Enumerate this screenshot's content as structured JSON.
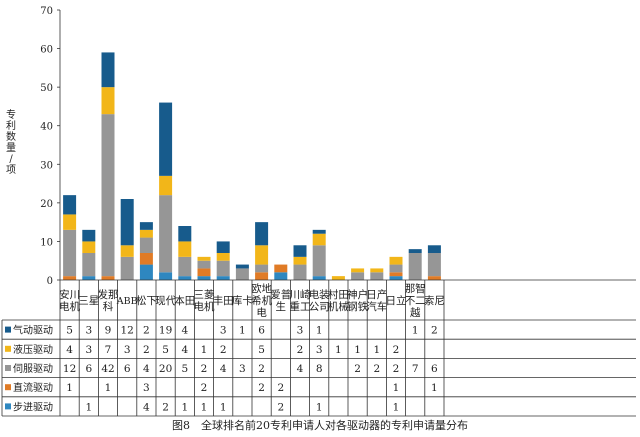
{
  "chart_data": {
    "type": "bar",
    "stacked": true,
    "ylabel": "专利数量/项",
    "ylim": [
      0,
      70
    ],
    "yticks": [
      0,
      10,
      20,
      30,
      40,
      50,
      60,
      70
    ],
    "grid": false,
    "categories": [
      [
        "安川",
        "电机"
      ],
      [
        "三星"
      ],
      [
        "发那",
        "科"
      ],
      [
        "ABB"
      ],
      [
        "松下"
      ],
      [
        "现代"
      ],
      [
        "本田"
      ],
      [
        "三菱",
        "电机"
      ],
      [
        "丰田"
      ],
      [
        "库卡"
      ],
      [
        "欧地",
        "希机",
        "电"
      ],
      [
        "爱普",
        "生"
      ],
      [
        "川崎",
        "重工"
      ],
      [
        "电装",
        "公司"
      ],
      [
        "村田",
        "机械"
      ],
      [
        "神户",
        "钢铁"
      ],
      [
        "日产",
        "汽车"
      ],
      [
        "日立"
      ],
      [
        "那智",
        "不二",
        "越"
      ],
      [
        "索尼"
      ]
    ],
    "series": [
      {
        "name": "步进驱动",
        "color": "#2e87c0",
        "values": [
          null,
          1,
          null,
          null,
          4,
          2,
          1,
          1,
          1,
          null,
          null,
          2,
          null,
          1,
          null,
          null,
          null,
          1,
          null,
          null
        ]
      },
      {
        "name": "直流驱动",
        "color": "#e07b26",
        "values": [
          1,
          null,
          1,
          null,
          3,
          null,
          null,
          2,
          null,
          null,
          2,
          2,
          null,
          null,
          null,
          null,
          null,
          1,
          null,
          1
        ]
      },
      {
        "name": "伺服驱动",
        "color": "#969696",
        "values": [
          12,
          6,
          42,
          6,
          4,
          20,
          5,
          2,
          4,
          3,
          2,
          null,
          4,
          8,
          null,
          2,
          2,
          2,
          7,
          6
        ]
      },
      {
        "name": "液压驱动",
        "color": "#f2b619",
        "values": [
          4,
          3,
          7,
          3,
          2,
          5,
          4,
          1,
          2,
          null,
          5,
          null,
          2,
          3,
          1,
          1,
          1,
          2,
          null,
          null
        ]
      },
      {
        "name": "气动驱动",
        "color": "#175b8c",
        "values": [
          5,
          3,
          9,
          12,
          2,
          19,
          4,
          null,
          3,
          1,
          6,
          null,
          3,
          1,
          null,
          null,
          null,
          null,
          1,
          2
        ]
      }
    ]
  },
  "figure_caption": "图8　全球排名前20专利申请人对各驱动器的专利申请量分布"
}
